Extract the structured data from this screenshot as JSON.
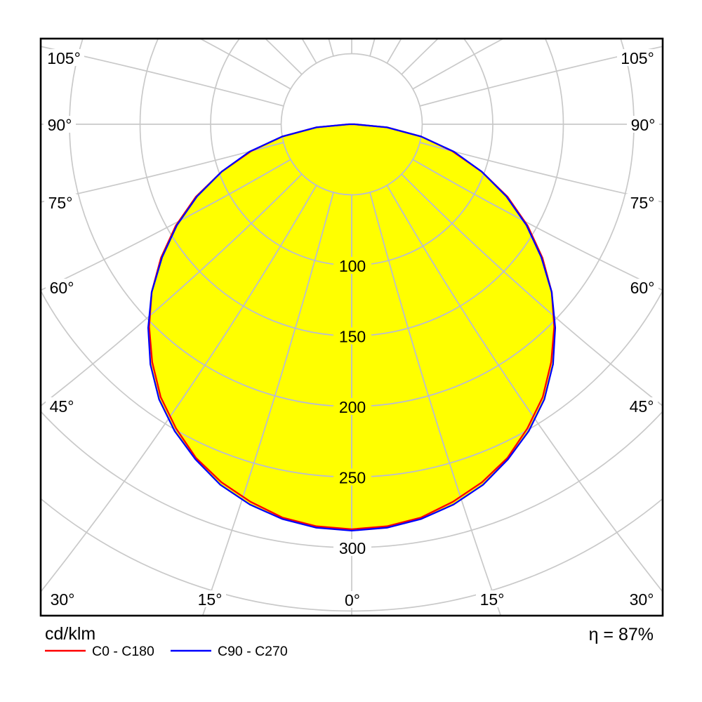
{
  "chart_data": {
    "type": "polar_intensity_distribution",
    "units_label": "cd/klm",
    "efficiency": "η = 87%",
    "gamma_deg": [
      0,
      5,
      10,
      15,
      20,
      25,
      30,
      35,
      40,
      45,
      50,
      55,
      60,
      65,
      70,
      75,
      80,
      85,
      90
    ],
    "series": [
      {
        "name": "C0 - C180",
        "color": "#ff0000",
        "values": [
          287,
          286,
          283,
          277,
          270,
          261,
          249,
          236,
          220,
          203,
          185,
          165,
          144,
          122,
          98,
          74,
          50,
          25,
          2
        ]
      },
      {
        "name": "C90 - C270",
        "color": "#0000ff",
        "values": [
          288,
          287,
          284,
          279,
          272,
          262,
          251,
          238,
          222,
          204,
          185,
          164,
          143,
          121,
          98,
          75,
          50,
          25,
          2
        ]
      }
    ],
    "radial_tick_labels": [
      "100",
      "150",
      "200",
      "250",
      "300"
    ],
    "radial_tick_values": [
      100,
      150,
      200,
      250,
      300
    ],
    "radial_grid_values": [
      50,
      100,
      150,
      200,
      250,
      300,
      345
    ],
    "angle_step_deg": 15,
    "angle_labels_left": [
      "105°",
      "90°",
      "75°",
      "60°",
      "45°"
    ],
    "angle_labels_bottom": [
      "30°",
      "15°",
      "0°",
      "15°",
      "30°"
    ],
    "angle_labels_right": [
      "45°",
      "60°",
      "75°",
      "90°",
      "105°"
    ],
    "fill_color": "#ffff00",
    "grid_color_outer": "#c9c9c9",
    "grid_color_inner": "#b6b9d8",
    "frame_color": "#000000",
    "symmetric": true
  }
}
